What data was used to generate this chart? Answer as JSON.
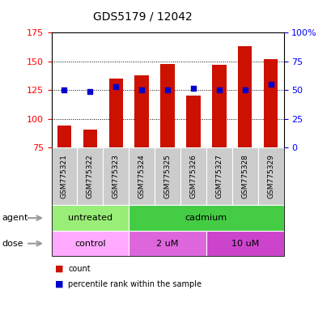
{
  "title": "GDS5179 / 12042",
  "samples": [
    "GSM775321",
    "GSM775322",
    "GSM775323",
    "GSM775324",
    "GSM775325",
    "GSM775326",
    "GSM775327",
    "GSM775328",
    "GSM775329"
  ],
  "count_values": [
    94,
    91,
    135,
    138,
    148,
    120,
    147,
    163,
    152
  ],
  "percentile_values": [
    50,
    49,
    53,
    50,
    50,
    52,
    50,
    50,
    55
  ],
  "ylim_left": [
    75,
    175
  ],
  "ylim_right": [
    0,
    100
  ],
  "yticks_left": [
    75,
    100,
    125,
    150,
    175
  ],
  "yticks_right": [
    0,
    25,
    50,
    75,
    100
  ],
  "ytick_labels_right": [
    "0",
    "25",
    "50",
    "75",
    "100%"
  ],
  "bar_color": "#cc1100",
  "dot_color": "#0000cc",
  "bar_bottom": 75,
  "agent_groups": [
    {
      "label": "untreated",
      "start": 0,
      "end": 3,
      "color": "#99ee77"
    },
    {
      "label": "cadmium",
      "start": 3,
      "end": 9,
      "color": "#44cc44"
    }
  ],
  "dose_groups": [
    {
      "label": "control",
      "start": 0,
      "end": 3,
      "color": "#ffaaff"
    },
    {
      "label": "2 uM",
      "start": 3,
      "end": 6,
      "color": "#dd66dd"
    },
    {
      "label": "10 uM",
      "start": 6,
      "end": 9,
      "color": "#cc44cc"
    }
  ],
  "legend_count_label": "count",
  "legend_pct_label": "percentile rank within the sample",
  "label_agent": "agent",
  "label_dose": "dose",
  "tick_area_color": "#cccccc",
  "bg_color": "#ffffff",
  "arrow_color": "#999999"
}
